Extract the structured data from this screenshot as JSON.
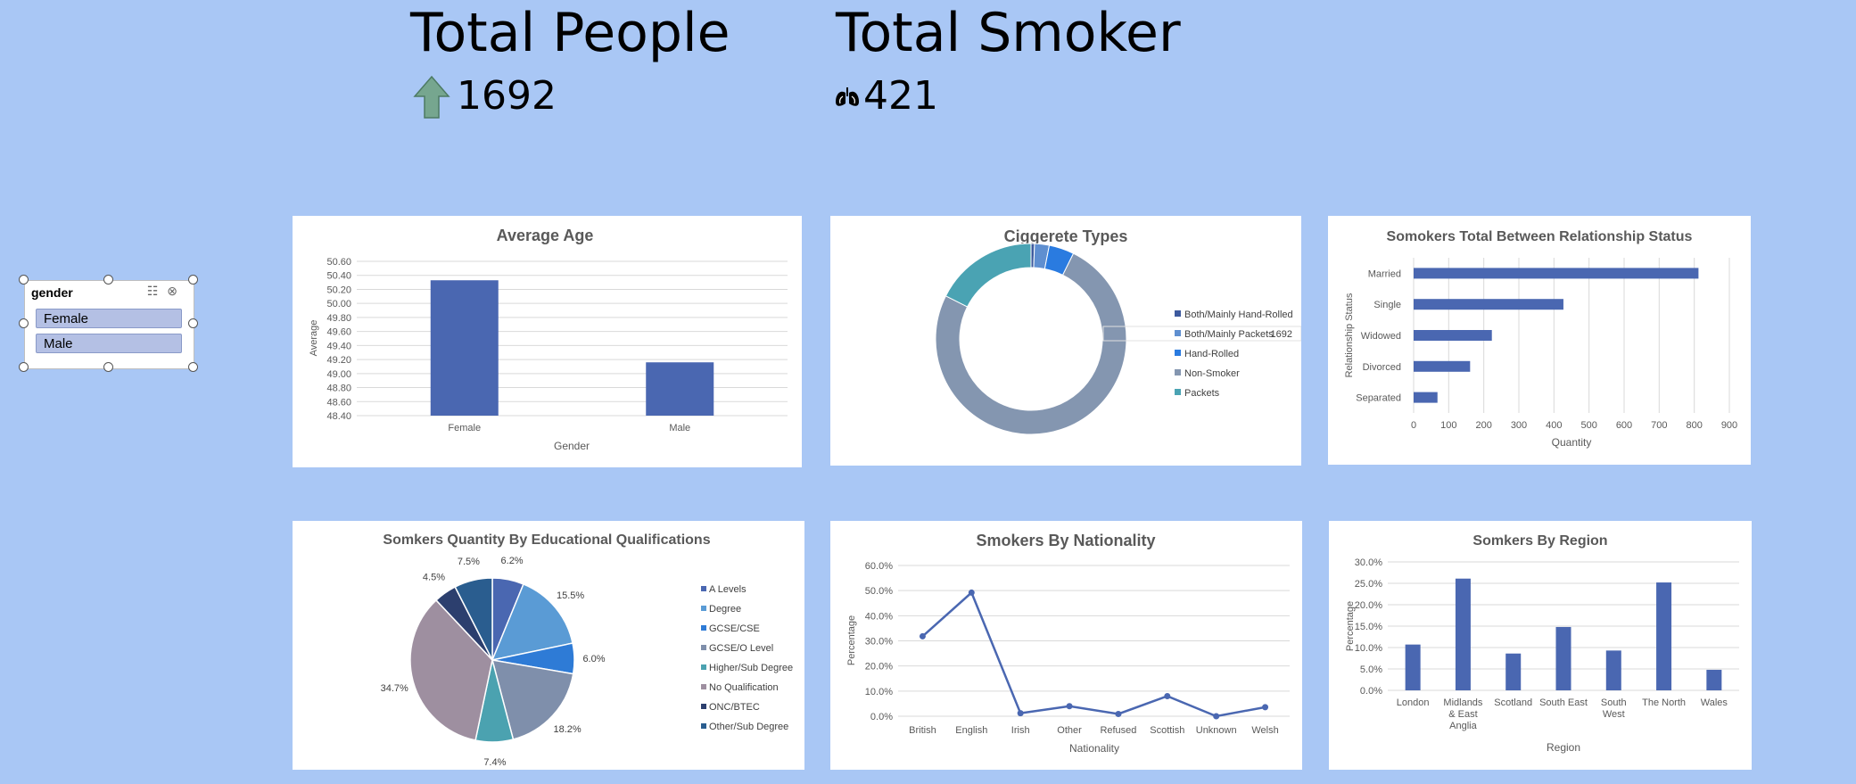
{
  "kpis": {
    "total_people": {
      "title": "Total People",
      "value": "1692"
    },
    "total_smoker": {
      "title": "Total Smoker",
      "value": "421"
    }
  },
  "slicer": {
    "title": "gender",
    "items": [
      "Female",
      "Male"
    ]
  },
  "colors": {
    "background": "#a9c7f5",
    "bar": "#4a67b1",
    "line": "#4a67b1",
    "kpi_arrow": "#76a68f"
  },
  "icons": [
    "up-arrow-icon",
    "lungs-icon",
    "multi-select-icon",
    "clear-filter-icon"
  ],
  "chart_data": [
    {
      "id": "average_age",
      "type": "bar",
      "title": "Average Age",
      "xlabel": "Gender",
      "ylabel": "Average",
      "categories": [
        "Female",
        "Male"
      ],
      "values": [
        50.33,
        49.16
      ],
      "ylim": [
        48.4,
        50.6
      ],
      "yticks": [
        "48.40",
        "48.60",
        "48.80",
        "49.00",
        "49.20",
        "49.40",
        "49.60",
        "49.80",
        "50.00",
        "50.20",
        "50.40",
        "50.60"
      ],
      "grid": true
    },
    {
      "id": "cigarette_types",
      "type": "pie",
      "variant": "donut",
      "title": "Ciggerete Types",
      "categories": [
        "Both/Mainly Hand-Rolled",
        "Both/Mainly Packets",
        "Hand-Rolled",
        "Non-Smoker",
        "Packets"
      ],
      "values": [
        10,
        42,
        72,
        1270,
        297
      ],
      "colors": [
        "#3d5a9e",
        "#5f8fd0",
        "#2a7be0",
        "#8496b0",
        "#4aa3b3"
      ],
      "label": "1692",
      "legend_position": "right"
    },
    {
      "id": "relationship_status",
      "type": "bar",
      "orientation": "horizontal",
      "title": "Somokers Total Between Relationship Status",
      "xlabel": "Quantity",
      "ylabel": "Relationship Status",
      "categories": [
        "Married",
        "Single",
        "Widowed",
        "Divorced",
        "Separated"
      ],
      "values": [
        812,
        427,
        223,
        161,
        68
      ],
      "xlim": [
        0,
        900
      ],
      "xticks": [
        "0",
        "100",
        "200",
        "300",
        "400",
        "500",
        "600",
        "700",
        "800",
        "900"
      ],
      "grid": true
    },
    {
      "id": "education",
      "type": "pie",
      "title": "Somkers Quantity By Educational Qualifications",
      "categories": [
        "A Levels",
        "Degree",
        "GCSE/CSE",
        "GCSE/O Level",
        "Higher/Sub Degree",
        "No Qualification",
        "ONC/BTEC",
        "Other/Sub Degree"
      ],
      "values": [
        6.2,
        15.5,
        6.0,
        18.2,
        7.4,
        34.7,
        4.5,
        7.5
      ],
      "labels": [
        "6.2%",
        "15.5%",
        "6.0%",
        "18.2%",
        "7.4%",
        "34.7%",
        "4.5%",
        "7.5%"
      ],
      "colors": [
        "#4a67b1",
        "#5a9bd5",
        "#2e7bd6",
        "#7f8fab",
        "#4ba2b0",
        "#9e8fa0",
        "#2c3f6e",
        "#2a5d8f"
      ],
      "legend_position": "right"
    },
    {
      "id": "nationality",
      "type": "line",
      "title": "Smokers By Nationality",
      "xlabel": "Nationality",
      "ylabel": "Percentage",
      "categories": [
        "British",
        "English",
        "Irish",
        "Other",
        "Refused",
        "Scottish",
        "Unknown",
        "Welsh"
      ],
      "values": [
        31.8,
        49.2,
        1.2,
        4.0,
        0.9,
        8.0,
        0.0,
        3.6
      ],
      "ylim": [
        0,
        60
      ],
      "yticks": [
        "0.0%",
        "10.0%",
        "20.0%",
        "30.0%",
        "40.0%",
        "50.0%",
        "60.0%"
      ],
      "grid": true
    },
    {
      "id": "region",
      "type": "bar",
      "title": "Somkers By Region",
      "xlabel": "Region",
      "ylabel": "Percentage",
      "categories": [
        "London",
        "Midlands & East Anglia",
        "Scotland",
        "South East",
        "South West",
        "The North",
        "Wales"
      ],
      "values": [
        10.7,
        26.1,
        8.6,
        14.8,
        9.3,
        25.2,
        4.8
      ],
      "ylim": [
        0,
        30
      ],
      "yticks": [
        "0.0%",
        "5.0%",
        "10.0%",
        "15.0%",
        "20.0%",
        "25.0%",
        "30.0%"
      ],
      "grid": true
    }
  ]
}
